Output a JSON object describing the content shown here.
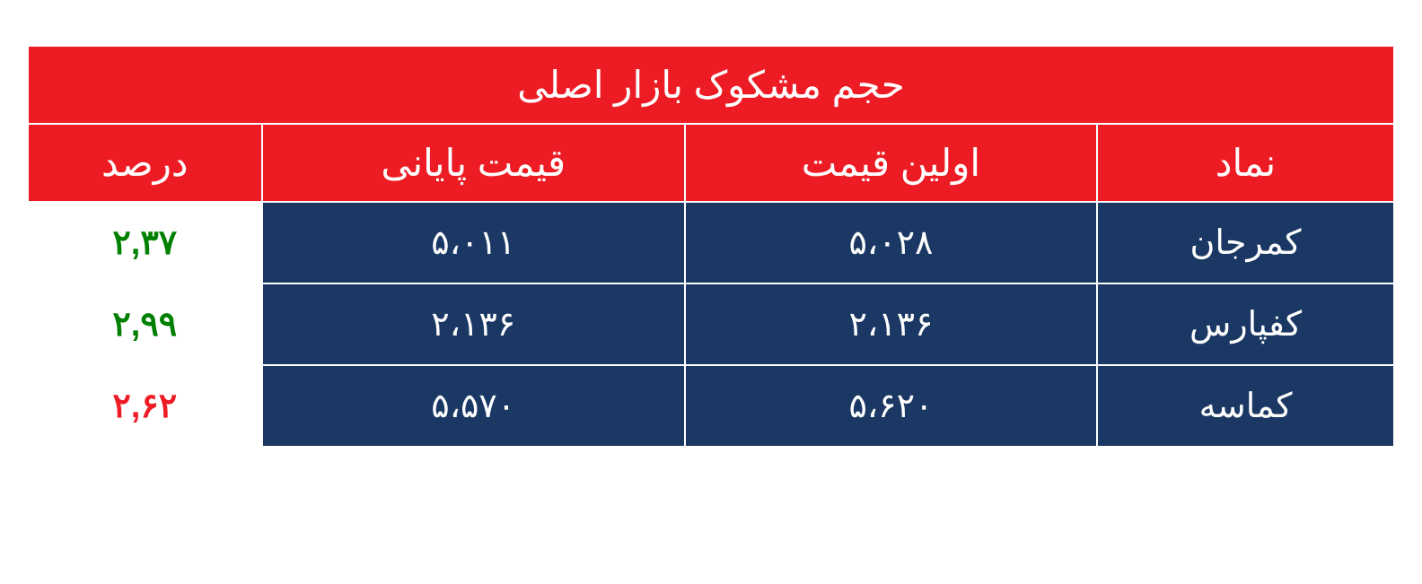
{
  "table": {
    "title": "حجم مشکوک بازار اصلی",
    "columns": [
      "نماد",
      "اولین قیمت",
      "قیمت پایانی",
      "درصد"
    ],
    "rows": [
      {
        "symbol": "کمرجان",
        "first_price": "۵،۰۲۸",
        "last_price": "۵،۰۱۱",
        "percent": "۲,۳۷",
        "percent_color": "green"
      },
      {
        "symbol": "کفپارس",
        "first_price": "۲،۱۳۶",
        "last_price": "۲،۱۳۶",
        "percent": "۲,۹۹",
        "percent_color": "green"
      },
      {
        "symbol": "کماسه",
        "first_price": "۵،۶۲۰",
        "last_price": "۵،۵۷۰",
        "percent": "۲,۶۲",
        "percent_color": "red"
      }
    ],
    "styles": {
      "header_bg": "#ed1c24",
      "header_text": "#ffffff",
      "data_bg": "#1a3863",
      "data_text": "#ffffff",
      "percent_bg": "#ffffff",
      "green": "#008000",
      "red": "#ed1c24",
      "border_color": "#ffffff",
      "title_fontsize": 42,
      "header_fontsize": 42,
      "data_fontsize": 38
    }
  }
}
